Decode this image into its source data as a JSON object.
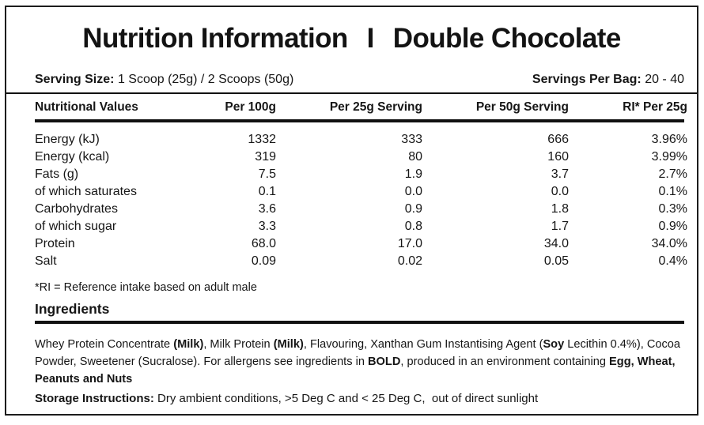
{
  "title": {
    "left": "Nutrition Information",
    "separator": "I",
    "right": "Double Chocolate"
  },
  "serving": {
    "size_label": "Serving Size:",
    "size_value": "1 Scoop (25g) / 2 Scoops (50g)",
    "per_bag_label": "Servings Per Bag:",
    "per_bag_value": "20 - 40"
  },
  "table": {
    "headers": [
      "Nutritional Values",
      "Per 100g",
      "Per 25g Serving",
      "Per 50g Serving",
      "RI* Per 25g"
    ],
    "rows": [
      [
        "Energy (kJ)",
        "1332",
        "333",
        "666",
        "3.96%"
      ],
      [
        "Energy (kcal)",
        "319",
        "80",
        "160",
        "3.99%"
      ],
      [
        "Fats (g)",
        "7.5",
        "1.9",
        "3.7",
        "2.7%"
      ],
      [
        "of which saturates",
        "0.1",
        "0.0",
        "0.0",
        "0.1%"
      ],
      [
        "Carbohydrates",
        "3.6",
        "0.9",
        "1.8",
        "0.3%"
      ],
      [
        "of which sugar",
        "3.3",
        "0.8",
        "1.7",
        "0.9%"
      ],
      [
        "Protein",
        "68.0",
        "17.0",
        "34.0",
        "34.0%"
      ],
      [
        "Salt",
        "0.09",
        "0.02",
        "0.05",
        "0.4%"
      ]
    ]
  },
  "footnote": "*RI = Reference intake based on adult male",
  "ingredients": {
    "heading": "Ingredients",
    "segments": [
      {
        "text": "Whey Protein Concentrate ",
        "bold": false
      },
      {
        "text": "(Milk)",
        "bold": true
      },
      {
        "text": ", Milk Protein ",
        "bold": false
      },
      {
        "text": "(Milk)",
        "bold": true
      },
      {
        "text": ", Flavouring, Xanthan Gum Instantising Agent (",
        "bold": false
      },
      {
        "text": "Soy",
        "bold": true
      },
      {
        "text": " Lecithin 0.4%), Cocoa Powder, Sweetener (Sucralose). For allergens see ingredients in ",
        "bold": false
      },
      {
        "text": "BOLD",
        "bold": true
      },
      {
        "text": ", produced in an environment containing ",
        "bold": false
      },
      {
        "text": "Egg, Wheat, Peanuts and Nuts",
        "bold": true
      }
    ]
  },
  "storage": {
    "label": "Storage Instructions:",
    "text": " Dry ambient conditions, >5 Deg C and < 25 Deg C,  out of direct sunlight"
  },
  "colors": {
    "text": "#161616",
    "rule": "#111111",
    "background": "#ffffff"
  }
}
